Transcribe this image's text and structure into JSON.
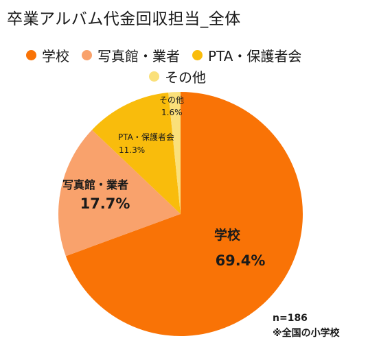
{
  "chart_data": {
    "type": "pie",
    "title": "卒業アルバム代金回収担当_全体",
    "categories": [
      "学校",
      "写真館・業者",
      "PTA・保護者会",
      "その他"
    ],
    "legend_labels": [
      "学校",
      "写真館・業者",
      "PTA・保護者会",
      "その他"
    ],
    "slice_labels": [
      "学校",
      "写真館・業者",
      "PTA・保護者会",
      "その他"
    ],
    "values": [
      69.4,
      17.7,
      11.3,
      1.6
    ],
    "value_labels": [
      "69.4%",
      "17.7%",
      "11.3%",
      "1.6%"
    ],
    "colors": [
      "#F97306",
      "#F9A26C",
      "#F9BC0C",
      "#FAE07A"
    ],
    "legend_position": "top"
  },
  "notes": {
    "sample_size": "n=186",
    "scope": "※全国の小学校"
  }
}
